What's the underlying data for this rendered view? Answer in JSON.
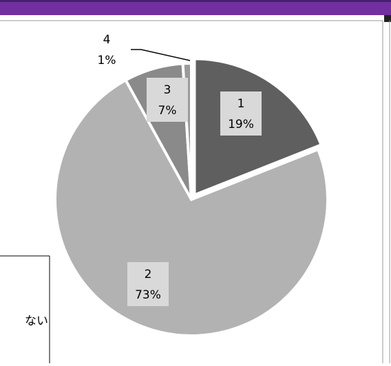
{
  "chart_data": {
    "type": "pie",
    "categories": [
      "1",
      "2",
      "3",
      "4"
    ],
    "values": [
      19,
      73,
      7,
      1
    ],
    "value_labels": [
      "19%",
      "73%",
      "7%",
      "1%"
    ],
    "colors": [
      "#5f5f5f",
      "#b2b2b2",
      "#8a8a8a",
      "#9a9a9a"
    ]
  },
  "legend_fragment": "ない"
}
